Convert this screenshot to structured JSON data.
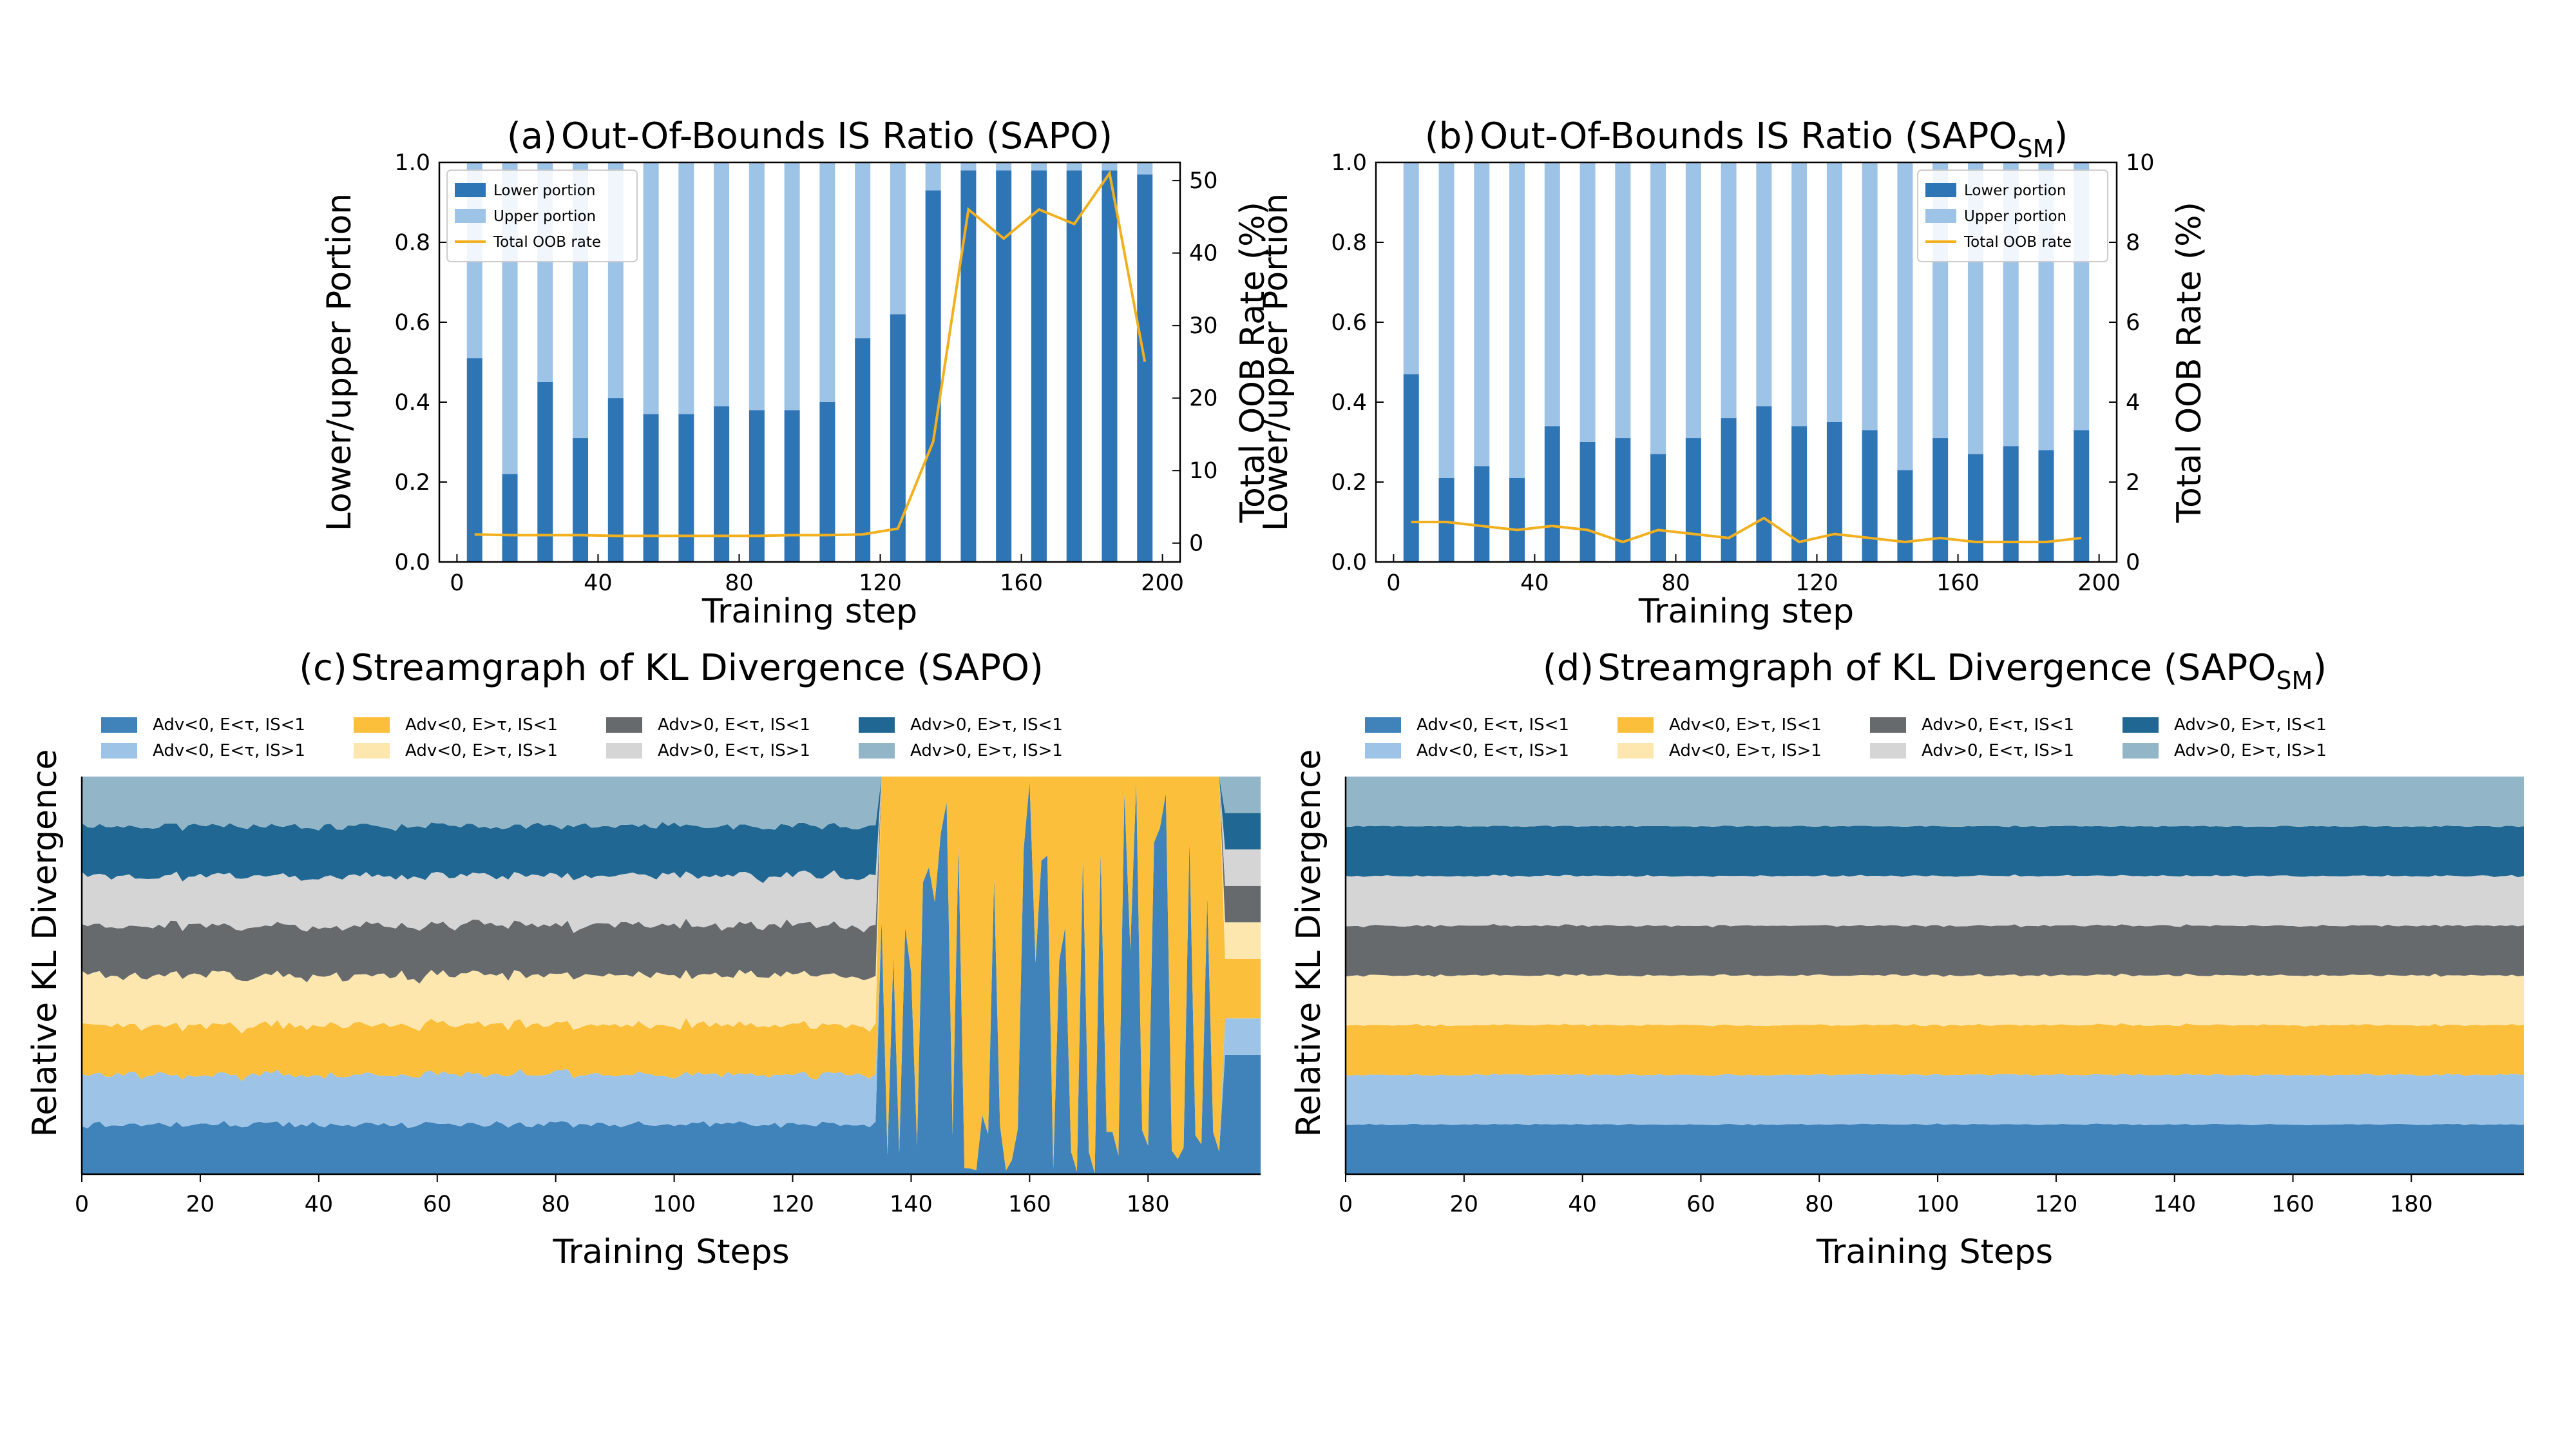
{
  "chart_data": [
    {
      "id": "a",
      "type": "bar",
      "panel_label": "(a)",
      "title": "Out-Of-Bounds IS Ratio  (SAPO)",
      "title_sub": "",
      "title_close": "",
      "xlabel": "Training step",
      "ylabel": "Lower/upper Portion",
      "y2label": "Total OOB Rate (%)",
      "xlim": [
        -5,
        205
      ],
      "ylim": [
        0,
        1.0
      ],
      "y2lim": [
        -2.6,
        52.5
      ],
      "xticks": [
        "0",
        "40",
        "80",
        "120",
        "160",
        "200"
      ],
      "xtick_values": [
        0,
        40,
        80,
        120,
        160,
        200
      ],
      "yticks": [
        "0.0",
        "0.2",
        "0.4",
        "0.6",
        "0.8",
        "1.0"
      ],
      "ytick_values": [
        0,
        0.2,
        0.4,
        0.6,
        0.8,
        1.0
      ],
      "y2ticks": [
        "0",
        "10",
        "20",
        "30",
        "40",
        "50"
      ],
      "y2tick_values": [
        0,
        10,
        20,
        30,
        40,
        50
      ],
      "legend": {
        "placement": "top-left",
        "entries": [
          "Lower portion",
          "Upper portion",
          "Total OOB rate"
        ]
      },
      "colors": {
        "lower": "#2e75b6",
        "upper": "#9dc3e6",
        "line": "#f2b01e"
      },
      "x": [
        5,
        15,
        25,
        35,
        45,
        55,
        65,
        75,
        85,
        95,
        105,
        115,
        125,
        135,
        145,
        155,
        165,
        175,
        185,
        195
      ],
      "series": [
        {
          "name": "Lower portion",
          "values": [
            0.51,
            0.22,
            0.45,
            0.31,
            0.41,
            0.37,
            0.37,
            0.39,
            0.38,
            0.38,
            0.4,
            0.56,
            0.62,
            0.93,
            0.98,
            0.98,
            0.98,
            0.98,
            0.98,
            0.97
          ]
        },
        {
          "name": "Upper portion",
          "values": [
            0.49,
            0.78,
            0.55,
            0.69,
            0.59,
            0.63,
            0.63,
            0.61,
            0.62,
            0.62,
            0.6,
            0.44,
            0.38,
            0.07,
            0.02,
            0.02,
            0.02,
            0.02,
            0.02,
            0.03
          ]
        },
        {
          "name": "Total OOB rate",
          "axis": "right",
          "values": [
            1.2,
            1.1,
            1.1,
            1.1,
            1.0,
            1.0,
            1.0,
            1.0,
            1.0,
            1.1,
            1.1,
            1.2,
            2.0,
            14,
            46,
            42,
            46,
            44,
            51,
            25
          ]
        }
      ]
    },
    {
      "id": "b",
      "type": "bar",
      "panel_label": "(b)",
      "title": "Out-Of-Bounds IS Ratio  (SAPO",
      "title_sub": "SM",
      "title_close": ")",
      "xlabel": "Training step",
      "ylabel": "Lower/upper Portion",
      "y2label": "Total OOB Rate (%)",
      "xlim": [
        -5,
        205
      ],
      "ylim": [
        0,
        1.0
      ],
      "y2lim": [
        0,
        10
      ],
      "xticks": [
        "0",
        "40",
        "80",
        "120",
        "160",
        "200"
      ],
      "xtick_values": [
        0,
        40,
        80,
        120,
        160,
        200
      ],
      "yticks": [
        "0.0",
        "0.2",
        "0.4",
        "0.6",
        "0.8",
        "1.0"
      ],
      "ytick_values": [
        0,
        0.2,
        0.4,
        0.6,
        0.8,
        1.0
      ],
      "y2ticks": [
        "0",
        "2",
        "4",
        "6",
        "8",
        "10"
      ],
      "y2tick_values": [
        0,
        2,
        4,
        6,
        8,
        10
      ],
      "legend": {
        "placement": "top-right",
        "entries": [
          "Lower portion",
          "Upper portion",
          "Total OOB rate"
        ]
      },
      "colors": {
        "lower": "#2e75b6",
        "upper": "#9dc3e6",
        "line": "#f2b01e"
      },
      "x": [
        5,
        15,
        25,
        35,
        45,
        55,
        65,
        75,
        85,
        95,
        105,
        115,
        125,
        135,
        145,
        155,
        165,
        175,
        185,
        195
      ],
      "series": [
        {
          "name": "Lower portion",
          "values": [
            0.47,
            0.21,
            0.24,
            0.21,
            0.34,
            0.3,
            0.31,
            0.27,
            0.31,
            0.36,
            0.39,
            0.34,
            0.35,
            0.33,
            0.23,
            0.31,
            0.27,
            0.29,
            0.28,
            0.33
          ]
        },
        {
          "name": "Upper portion",
          "values": [
            0.53,
            0.79,
            0.76,
            0.79,
            0.66,
            0.7,
            0.69,
            0.73,
            0.69,
            0.64,
            0.61,
            0.66,
            0.65,
            0.67,
            0.77,
            0.69,
            0.73,
            0.71,
            0.72,
            0.67
          ]
        },
        {
          "name": "Total OOB rate",
          "axis": "right",
          "values": [
            1.0,
            1.0,
            0.9,
            0.8,
            0.9,
            0.8,
            0.5,
            0.8,
            0.7,
            0.6,
            1.1,
            0.5,
            0.7,
            0.6,
            0.5,
            0.6,
            0.5,
            0.5,
            0.5,
            0.6
          ]
        }
      ]
    },
    {
      "id": "c",
      "type": "area",
      "panel_label": "(c)",
      "title": "Streamgraph of KL Divergence (SAPO)",
      "title_sub": "",
      "title_close": "",
      "xlabel": "Training Steps",
      "ylabel": "Relative KL Divergence",
      "xlim": [
        0,
        199
      ],
      "xticks": [
        "0",
        "20",
        "40",
        "60",
        "80",
        "100",
        "120",
        "140",
        "160",
        "180"
      ],
      "xtick_values": [
        0,
        20,
        40,
        60,
        80,
        100,
        120,
        140,
        160,
        180
      ],
      "regime_change_step": 135,
      "legend": {
        "placement": "top-left",
        "columns": 4
      },
      "series": [
        {
          "name": "Adv<0, E<τ, IS<1",
          "color": "#3f83ba"
        },
        {
          "name": "Adv<0, E<τ, IS>1",
          "color": "#9dc3e6"
        },
        {
          "name": "Adv<0, E>τ, IS<1",
          "color": "#fbbf3c"
        },
        {
          "name": "Adv<0, E>τ, IS>1",
          "color": "#fde7ae"
        },
        {
          "name": "Adv>0, E<τ, IS<1",
          "color": "#676a6d"
        },
        {
          "name": "Adv>0, E<τ, IS>1",
          "color": "#d5d5d5"
        },
        {
          "name": "Adv>0, E>τ, IS<1",
          "color": "#206893"
        },
        {
          "name": "Adv>0, E>τ, IS>1",
          "color": "#92b6c8"
        }
      ]
    },
    {
      "id": "d",
      "type": "area",
      "panel_label": "(d)",
      "title": "Streamgraph of KL Divergence (SAPO",
      "title_sub": "SM",
      "title_close": ")",
      "xlabel": "Training Steps",
      "ylabel": "Relative KL Divergence",
      "xlim": [
        0,
        199
      ],
      "xticks": [
        "0",
        "20",
        "40",
        "60",
        "80",
        "100",
        "120",
        "140",
        "160",
        "180"
      ],
      "xtick_values": [
        0,
        20,
        40,
        60,
        80,
        100,
        120,
        140,
        160,
        180
      ],
      "legend": {
        "placement": "top-left",
        "columns": 4
      },
      "series": [
        {
          "name": "Adv<0, E<τ, IS<1",
          "color": "#3f83ba"
        },
        {
          "name": "Adv<0, E<τ, IS>1",
          "color": "#9dc3e6"
        },
        {
          "name": "Adv<0, E>τ, IS<1",
          "color": "#fbbf3c"
        },
        {
          "name": "Adv<0, E>τ, IS>1",
          "color": "#fde7ae"
        },
        {
          "name": "Adv>0, E<τ, IS<1",
          "color": "#676a6d"
        },
        {
          "name": "Adv>0, E<τ, IS>1",
          "color": "#d5d5d5"
        },
        {
          "name": "Adv>0, E>τ, IS<1",
          "color": "#206893"
        },
        {
          "name": "Adv>0, E>τ, IS>1",
          "color": "#92b6c8"
        }
      ]
    }
  ]
}
